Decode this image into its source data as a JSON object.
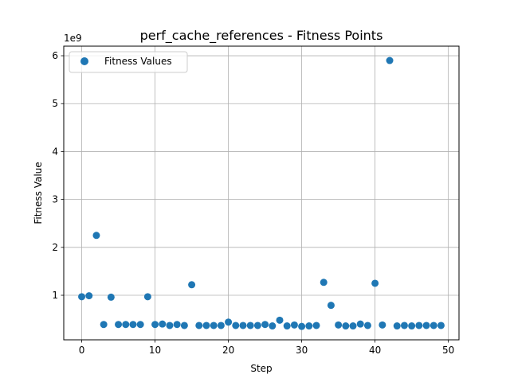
{
  "chart_data": {
    "type": "scatter",
    "title": "perf_cache_references - Fitness Points",
    "xlabel": "Step",
    "ylabel": "Fitness Value",
    "y_offset_label": "1e9",
    "xlim": [
      -2.45,
      51.45
    ],
    "ylim": [
      0.07,
      6.2
    ],
    "xticks": [
      0,
      10,
      20,
      30,
      40,
      50
    ],
    "xtick_labels": [
      "0",
      "10",
      "20",
      "30",
      "40",
      "50"
    ],
    "yticks": [
      1,
      2,
      3,
      4,
      5,
      6
    ],
    "ytick_labels": [
      "1",
      "2",
      "3",
      "4",
      "5",
      "6"
    ],
    "grid": true,
    "legend": "top-left",
    "color": "#1f77b4",
    "series": [
      {
        "name": "Fitness Values",
        "x": [
          0,
          1,
          2,
          3,
          4,
          5,
          6,
          7,
          8,
          9,
          10,
          11,
          12,
          13,
          14,
          15,
          16,
          17,
          18,
          19,
          20,
          21,
          22,
          23,
          24,
          25,
          26,
          27,
          28,
          29,
          30,
          31,
          32,
          33,
          34,
          35,
          36,
          37,
          38,
          39,
          40,
          41,
          42,
          43,
          44,
          45,
          46,
          47,
          48,
          49
        ],
        "y": [
          0.97,
          0.99,
          2.25,
          0.39,
          0.96,
          0.39,
          0.39,
          0.39,
          0.39,
          0.97,
          0.39,
          0.4,
          0.37,
          0.39,
          0.37,
          1.22,
          0.37,
          0.37,
          0.37,
          0.37,
          0.44,
          0.37,
          0.37,
          0.37,
          0.37,
          0.39,
          0.36,
          0.48,
          0.36,
          0.38,
          0.35,
          0.36,
          0.37,
          1.27,
          0.79,
          0.38,
          0.36,
          0.36,
          0.4,
          0.37,
          1.25,
          0.38,
          5.9,
          0.36,
          0.37,
          0.36,
          0.37,
          0.37,
          0.37,
          0.37
        ]
      }
    ]
  }
}
